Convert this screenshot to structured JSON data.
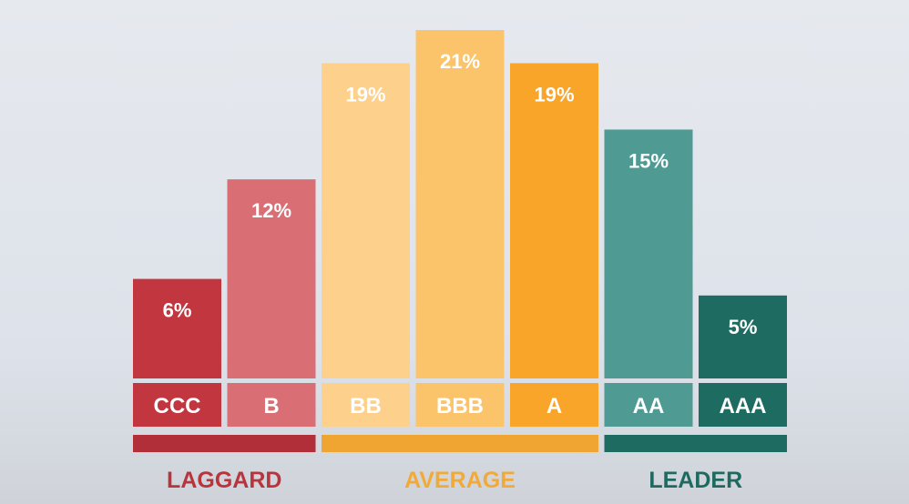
{
  "chart_data": {
    "type": "bar",
    "categories": [
      "CCC",
      "B",
      "BB",
      "BBB",
      "A",
      "AA",
      "AAA"
    ],
    "values": [
      6,
      12,
      19,
      21,
      19,
      15,
      5
    ],
    "value_labels": [
      "6%",
      "12%",
      "19%",
      "21%",
      "19%",
      "15%",
      "5%"
    ],
    "colors": [
      "#c1363f",
      "#d96e74",
      "#fdd18c",
      "#fcc46a",
      "#f9a52a",
      "#4f9a93",
      "#1e6b62"
    ],
    "groups": [
      {
        "label": "LAGGARD",
        "color": "#b12f39",
        "text_color": "#b9353e",
        "categories": [
          "CCC",
          "B"
        ]
      },
      {
        "label": "AVERAGE",
        "color": "#f0a431",
        "text_color": "#f2a935",
        "categories": [
          "BB",
          "BBB",
          "A"
        ]
      },
      {
        "label": "LEADER",
        "color": "#1e6b62",
        "text_color": "#1f6a60",
        "categories": [
          "AA",
          "AAA"
        ]
      }
    ],
    "title": "",
    "xlabel": "",
    "ylabel": "",
    "ylim": [
      0,
      21
    ],
    "grid": false,
    "legend": "none"
  }
}
